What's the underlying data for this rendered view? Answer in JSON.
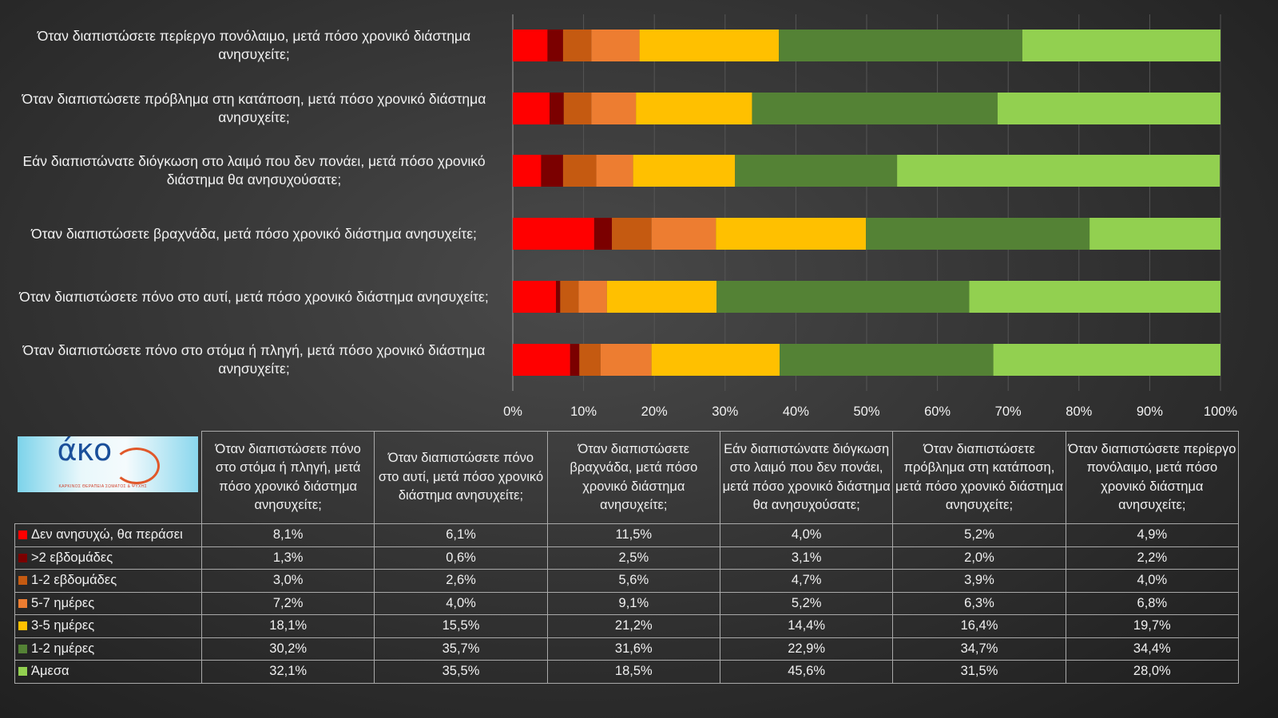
{
  "chart_data": {
    "type": "bar",
    "orientation": "horizontal",
    "stacked": "percent",
    "categories": [
      "Όταν διαπιστώσετε πόνο στο στόμα ή πληγή, μετά πόσο χρονικό διάστημα ανησυχείτε;",
      "Όταν διαπιστώσετε πόνο στο αυτί, μετά πόσο χρονικό διάστημα ανησυχείτε;",
      "Όταν διαπιστώσετε βραχνάδα, μετά πόσο χρονικό διάστημα ανησυχείτε;",
      "Εάν διαπιστώνατε διόγκωση στο λαιμό που δεν πονάει, μετά πόσο χρονικό διάστημα θα ανησυχούσατε;",
      "Όταν διαπιστώσετε πρόβλημα στη κατάποση, μετά πόσο χρονικό διάστημα ανησυχείτε;",
      "Όταν διαπιστώσετε περίεργο πονόλαιμο, μετά πόσο χρονικό διάστημα ανησυχείτε;"
    ],
    "series": [
      {
        "name": "Δεν ανησυχώ, θα περάσει",
        "color": "#ff0000",
        "values": [
          8.1,
          6.1,
          11.5,
          4.0,
          5.2,
          4.9
        ],
        "labels": [
          "8,1%",
          "6,1%",
          "11,5%",
          "4,0%",
          "5,2%",
          "4,9%"
        ]
      },
      {
        "name": ">2 εβδομάδες",
        "color": "#7b0000",
        "values": [
          1.3,
          0.6,
          2.5,
          3.1,
          2.0,
          2.2
        ],
        "labels": [
          "1,3%",
          "0,6%",
          "2,5%",
          "3,1%",
          "2,0%",
          "2,2%"
        ]
      },
      {
        "name": "1-2 εβδομάδες",
        "color": "#c55a11",
        "values": [
          3.0,
          2.6,
          5.6,
          4.7,
          3.9,
          4.0
        ],
        "labels": [
          "3,0%",
          "2,6%",
          "5,6%",
          "4,7%",
          "3,9%",
          "4,0%"
        ]
      },
      {
        "name": "5-7 ημέρες",
        "color": "#ed7d31",
        "values": [
          7.2,
          4.0,
          9.1,
          5.2,
          6.3,
          6.8
        ],
        "labels": [
          "7,2%",
          "4,0%",
          "9,1%",
          "5,2%",
          "6,3%",
          "6,8%"
        ]
      },
      {
        "name": "3-5 ημέρες",
        "color": "#ffc000",
        "values": [
          18.1,
          15.5,
          21.2,
          14.4,
          16.4,
          19.7
        ],
        "labels": [
          "18,1%",
          "15,5%",
          "21,2%",
          "14,4%",
          "16,4%",
          "19,7%"
        ]
      },
      {
        "name": "1-2 ημέρες",
        "color": "#548235",
        "values": [
          30.2,
          35.7,
          31.6,
          22.9,
          34.7,
          34.4
        ],
        "labels": [
          "30,2%",
          "35,7%",
          "31,6%",
          "22,9%",
          "34,7%",
          "34,4%"
        ]
      },
      {
        "name": "Άμεσα",
        "color": "#92d050",
        "values": [
          32.1,
          35.5,
          18.5,
          45.6,
          31.5,
          28.0
        ],
        "labels": [
          "32,1%",
          "35,5%",
          "18,5%",
          "45,6%",
          "31,5%",
          "28,0%"
        ]
      }
    ],
    "xlim": [
      0,
      100
    ],
    "xticks": [
      "0%",
      "10%",
      "20%",
      "30%",
      "40%",
      "50%",
      "60%",
      "70%",
      "80%",
      "90%",
      "100%"
    ],
    "grid": true,
    "legend": "data-table-below"
  },
  "logo": {
    "text": "άκος",
    "subtitle": "ΚΑΡΚΙΝΟΣ ΘΕΡΑΠΕΙΑ ΣΩΜΑΤΟΣ & ΨΥΧΗΣ"
  }
}
